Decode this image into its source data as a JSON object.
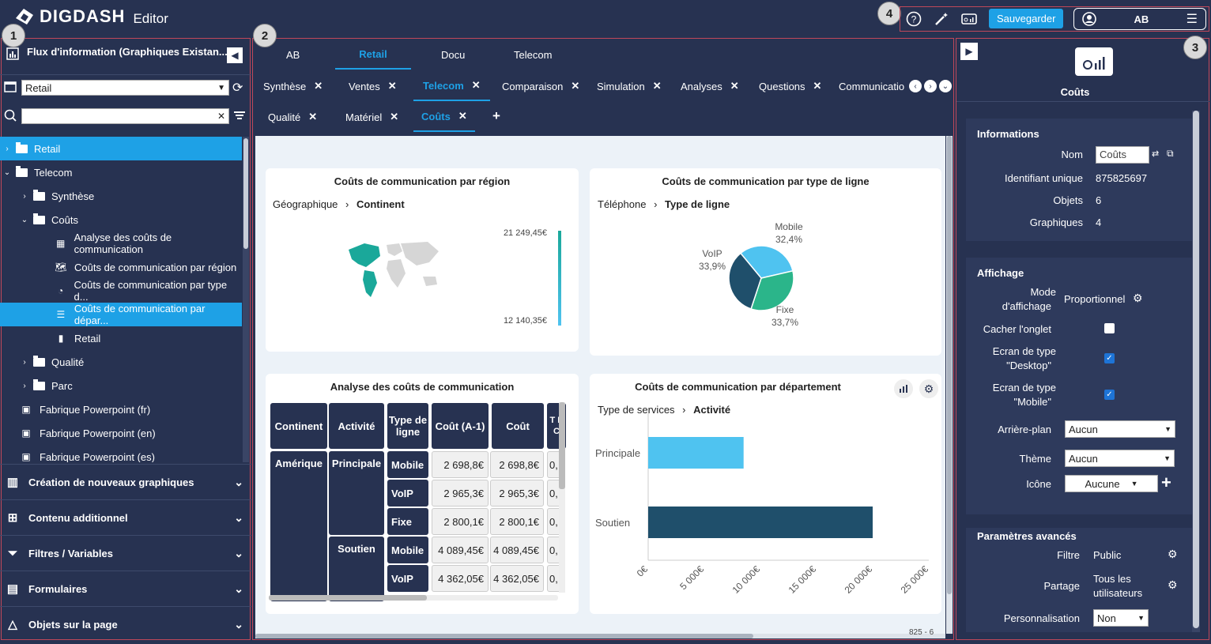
{
  "app": {
    "logo": "DIGDASH",
    "subtitle": "Editor"
  },
  "badges": {
    "b1": "1",
    "b2": "2",
    "b3": "3",
    "b4": "4"
  },
  "topbar": {
    "save": "Sauvegarder",
    "user": "AB",
    "help_icon": "help-icon",
    "magic_icon": "magic-wand-icon",
    "display_icon": "display-icon",
    "menu_icon": "hamburger-icon"
  },
  "left": {
    "header": "Flux d'information (Graphiques Existan...",
    "role_select": "Retail",
    "search_placeholder": "",
    "tree": [
      {
        "label": "Retail",
        "level": 0,
        "type": "folder",
        "caret": "›",
        "selected": true
      },
      {
        "label": "Telecom",
        "level": 0,
        "type": "folder",
        "caret": "⌄"
      },
      {
        "label": "Synthèse",
        "level": 1,
        "type": "folder",
        "caret": "›"
      },
      {
        "label": "Coûts",
        "level": 1,
        "type": "folder",
        "caret": "⌄"
      },
      {
        "label": "Analyse des coûts de communication",
        "level": 2,
        "type": "grid"
      },
      {
        "label": "Coûts de communication par région",
        "level": 2,
        "type": "map"
      },
      {
        "label": "Coûts de communication par type d...",
        "level": 2,
        "type": "pie"
      },
      {
        "label": "Coûts de communication par dépar...",
        "level": 2,
        "type": "hbar",
        "selected": true
      },
      {
        "label": "Retail",
        "level": 2,
        "type": "bar"
      },
      {
        "label": "Qualité",
        "level": 1,
        "type": "folder",
        "caret": "›"
      },
      {
        "label": "Parc",
        "level": 1,
        "type": "folder",
        "caret": "›"
      },
      {
        "label": "Fabrique Powerpoint (fr)",
        "level": 1,
        "type": "ppt"
      },
      {
        "label": "Fabrique Powerpoint (en)",
        "level": 1,
        "type": "ppt"
      },
      {
        "label": "Fabrique Powerpoint (es)",
        "level": 1,
        "type": "ppt"
      }
    ],
    "accordions": [
      "Création de nouveaux graphiques",
      "Contenu additionnel",
      "Filtres / Variables",
      "Formulaires",
      "Objets sur la page"
    ]
  },
  "center": {
    "roles": [
      "AB",
      "Retail",
      "Docu",
      "Telecom"
    ],
    "tabs_row1": [
      "Synthèse",
      "Ventes",
      "Telecom",
      "Comparaison",
      "Simulation",
      "Analyses",
      "Questions",
      "Communicatio"
    ],
    "tabs_row2": [
      "Qualité",
      "Matériel",
      "Coûts"
    ],
    "add": "+",
    "scroll_status": "825 - 6"
  },
  "cards": {
    "region": {
      "title": "Coûts de communication par région",
      "bc1": "Géographique",
      "bc2": "Continent",
      "max": "21 249,45€",
      "min": "12 140,35€"
    },
    "type": {
      "title": "Coûts de communication par type de ligne",
      "bc1": "Téléphone",
      "bc2": "Type de ligne",
      "slices": [
        {
          "name": "Mobile",
          "pct": "32,4%",
          "value": 32.4,
          "color": "#4fc3f0"
        },
        {
          "name": "Fixe",
          "pct": "33,7%",
          "value": 33.7,
          "color": "#2bb58a"
        },
        {
          "name": "VoIP",
          "pct": "33,9%",
          "value": 33.9,
          "color": "#1f4f6b"
        }
      ]
    },
    "table": {
      "title": "Analyse des coûts de communication",
      "headers": [
        "Continent",
        "Activité",
        "Type de ligne",
        "Coût (A-1)",
        "Coût",
        "T E C"
      ],
      "continent": "Amérique",
      "act1": "Principale",
      "act2": "Soutien",
      "rows": [
        {
          "type": "Mobile",
          "c1": "2 698,8€",
          "c2": "2 698,8€",
          "c3": "0,"
        },
        {
          "type": "VoIP",
          "c1": "2 965,3€",
          "c2": "2 965,3€",
          "c3": "0,"
        },
        {
          "type": "Fixe",
          "c1": "2 800,1€",
          "c2": "2 800,1€",
          "c3": "0,"
        },
        {
          "type": "Mobile",
          "c1": "4 089,45€",
          "c2": "4 089,45€",
          "c3": "0,"
        },
        {
          "type": "VoIP",
          "c1": "4 362,05€",
          "c2": "4 362,05€",
          "c3": "0,"
        }
      ]
    },
    "dept": {
      "title": "Coûts de communication par département",
      "bc1": "Type de services",
      "bc2": "Activité"
    }
  },
  "chart_data": [
    {
      "type": "pie",
      "title": "Coûts de communication par type de ligne",
      "categories": [
        "Mobile",
        "Fixe",
        "VoIP"
      ],
      "values": [
        32.4,
        33.7,
        33.9
      ]
    },
    {
      "type": "bar",
      "title": "Coûts de communication par département",
      "categories": [
        "Principale",
        "Soutien"
      ],
      "values": [
        8500,
        20000
      ],
      "xlim": [
        0,
        25000
      ],
      "ticks": [
        "0€",
        "5 000€",
        "10 000€",
        "15 000€",
        "20 000€",
        "25 000€"
      ],
      "colors": [
        "#4fc3f0",
        "#1f4f6b"
      ]
    }
  ],
  "right": {
    "title": "Coûts",
    "info": {
      "section": "Informations",
      "nom_label": "Nom",
      "nom_value": "Coûts",
      "id_label": "Identifiant unique",
      "id_value": "875825697",
      "obj_label": "Objets",
      "obj_value": "6",
      "gr_label": "Graphiques",
      "gr_value": "4"
    },
    "aff": {
      "section": "Affichage",
      "mode_label1": "Mode",
      "mode_label2": "d'affichage",
      "mode_value": "Proportionnel",
      "hide_label": "Cacher l'onglet",
      "desk_label1": "Ecran de type",
      "desk_label2": "\"Desktop\"",
      "mob_label1": "Ecran de type",
      "mob_label2": "\"Mobile\"",
      "bg_label": "Arrière-plan",
      "bg_value": "Aucun",
      "theme_label": "Thème",
      "theme_value": "Aucun",
      "icon_label": "Icône",
      "icon_value": "Aucune"
    },
    "adv": {
      "section": "Paramètres avancés",
      "filtre_label": "Filtre",
      "filtre_value": "Public",
      "partage_label": "Partage",
      "partage_value1": "Tous les",
      "partage_value2": "utilisateurs",
      "perso_label": "Personnalisation",
      "perso_value": "Non"
    }
  }
}
